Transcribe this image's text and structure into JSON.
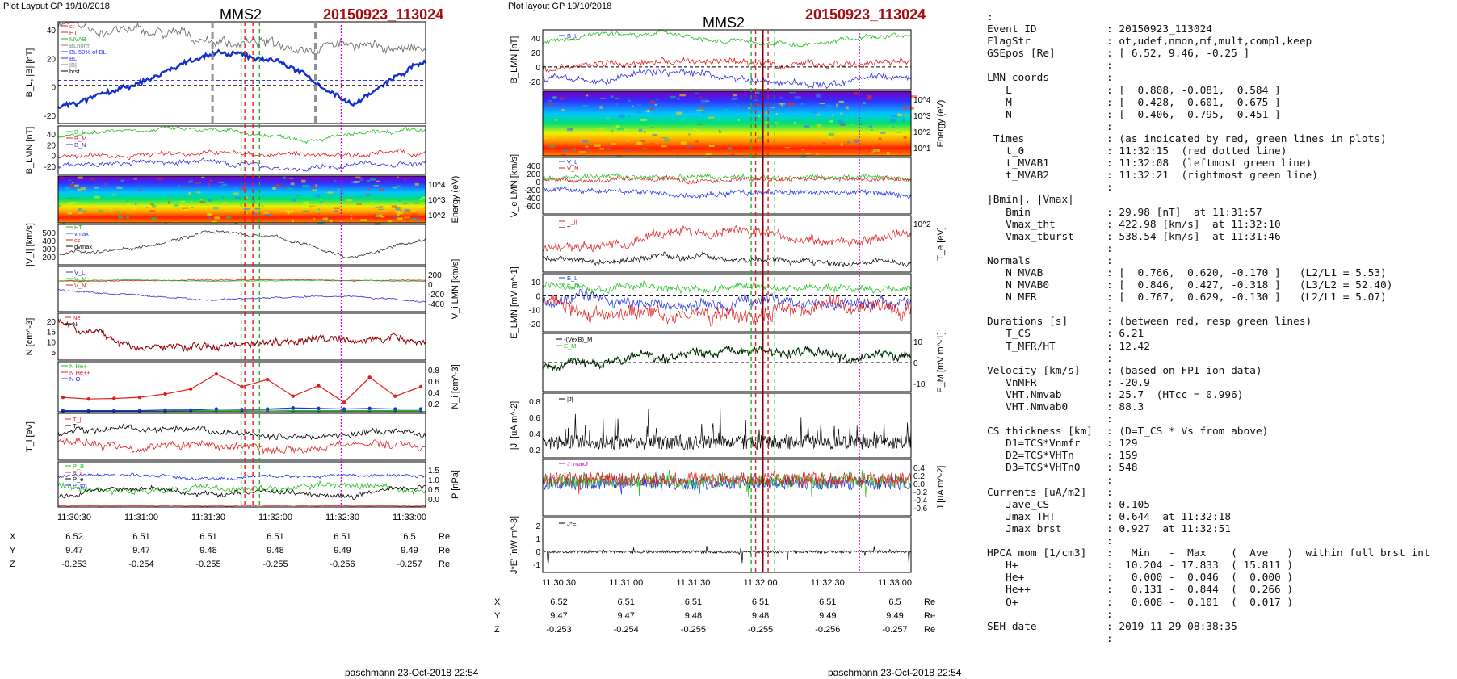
{
  "header_left": "Plot Layout GP 19/10/2018",
  "header_mid": "Plot layout GP 19/10/2018",
  "spacecraft": "MMS2",
  "event_title": "20150923_113024",
  "footer": "paschmann 23-Oct-2018 22:54",
  "colors": {
    "event": "#a01010",
    "green_lines": "#22b022",
    "red_lines": "#e02020",
    "magenta_line": "#cc00cc"
  },
  "left_plot": {
    "x_ticks": [
      "11:30:30",
      "11:31:00",
      "11:31:30",
      "11:32:00",
      "11:32:30",
      "11:33:00"
    ],
    "position_table": {
      "row_labels": [
        "X",
        "Y",
        "Z"
      ],
      "unit": "Re",
      "X": [
        "6.52",
        "6.51",
        "6.51",
        "6.51",
        "6.51",
        "6.5"
      ],
      "Y": [
        "9.47",
        "9.47",
        "9.48",
        "9.48",
        "9.49",
        "9.49"
      ],
      "Z": [
        "-0.253",
        "-0.254",
        "-0.255",
        "-0.255",
        "-0.256",
        "-0.257"
      ]
    },
    "panels": [
      {
        "ylabel": "B_L, |B| [nT]",
        "ticks": [
          "40",
          "20",
          "0",
          "-20"
        ],
        "legend": [
          "ct",
          "HT",
          "MVAB",
          "BLnorm",
          "BL 50% of BL",
          "BL",
          "|B|",
          "brst"
        ]
      },
      {
        "ylabel": "B_LMN [nT]",
        "ticks": [
          "40",
          "20",
          "0",
          "-20"
        ],
        "legend": [
          "B_L",
          "B_M",
          "B_N"
        ]
      },
      {
        "ylabel": "Energy (eV)",
        "ticks": [
          "10^4",
          "10^3",
          "10^2"
        ]
      },
      {
        "ylabel": "|V_i| [km/s]",
        "ticks": [
          "500",
          "400",
          "300",
          "200"
        ],
        "legend": [
          "HT",
          "vmax",
          "cs",
          "dvmax"
        ]
      },
      {
        "ylabel": "V_i LMN [km/s]",
        "ticks": [
          "200",
          "0",
          "-200",
          "-400"
        ],
        "legend": [
          "V_L",
          "V_M",
          "V_N"
        ]
      },
      {
        "ylabel": "N [cm^-3]",
        "ticks": [
          "20",
          "15",
          "10",
          "5"
        ],
        "legend": [
          "Ne",
          "Ni"
        ]
      },
      {
        "ylabel": "N_i [cm^-3]",
        "ticks": [
          "0.8",
          "0.6",
          "0.4",
          "0.2"
        ],
        "legend": [
          "N He+",
          "N He++",
          "N O+"
        ]
      },
      {
        "ylabel": "T_i [eV]",
        "ticks": [],
        "legend": [
          "T_||",
          "T"
        ]
      },
      {
        "ylabel": "P [nPa]",
        "ticks": [
          "1.5",
          "1.0",
          "0.5",
          "0.0"
        ],
        "legend": [
          "P_B",
          "P_i",
          "P_e",
          "P_tot"
        ]
      }
    ]
  },
  "mid_plot": {
    "x_ticks": [
      "11:30:30",
      "11:31:00",
      "11:31:30",
      "11:32:00",
      "11:32:30",
      "11:33:00"
    ],
    "position_table": {
      "row_labels": [
        "X",
        "Y",
        "Z"
      ],
      "unit": "Re",
      "X": [
        "6.52",
        "6.51",
        "6.51",
        "6.51",
        "6.51",
        "6.5"
      ],
      "Y": [
        "9.47",
        "9.47",
        "9.48",
        "9.48",
        "9.49",
        "9.49"
      ],
      "Z": [
        "-0.253",
        "-0.254",
        "-0.255",
        "-0.255",
        "-0.256",
        "-0.257"
      ]
    },
    "panels": [
      {
        "ylabel": "B_LMN [nT]",
        "ticks": [
          "40",
          "20",
          "0",
          "-20"
        ],
        "legend": [
          "B_L"
        ]
      },
      {
        "ylabel": "Energy (eV)",
        "ticks": [
          "10^4",
          "10^3",
          "10^2",
          "10^1"
        ]
      },
      {
        "ylabel": "V_e LMN [km/s]",
        "ticks": [
          "400",
          "200",
          "0",
          "-200",
          "-400",
          "-600"
        ],
        "legend": [
          "V_L",
          "V_N"
        ]
      },
      {
        "ylabel": "T_e [eV]",
        "ticks": [
          "10^2"
        ],
        "legend": [
          "T_||",
          "T"
        ]
      },
      {
        "ylabel": "E_LMN [mV m^-1]",
        "ticks": [
          "10",
          "0",
          "-10",
          "-20"
        ],
        "legend": [
          "E_L",
          "E_N"
        ]
      },
      {
        "ylabel": "E_M [mV m^-1]",
        "ticks": [
          "10",
          "0",
          "-10"
        ],
        "legend": [
          "-(VexB)_M",
          "E_M"
        ]
      },
      {
        "ylabel": "|J| [uA m^-2]",
        "ticks": [
          "0.8",
          "0.6",
          "0.4",
          "0.2"
        ],
        "legend": [
          "|J|"
        ]
      },
      {
        "ylabel": "J [uA m^-2]",
        "ticks": [
          "0.4",
          "0.2",
          "0.0",
          "-0.2",
          "-0.4",
          "-0.6"
        ],
        "legend": [
          "J_maxJ"
        ]
      },
      {
        "ylabel": "J*E' [nW m^-3]",
        "ticks": [
          "2",
          "1",
          "0",
          "-1"
        ],
        "legend": [
          "J*E'"
        ]
      }
    ]
  },
  "summary": [
    {
      "key": ":",
      "value": ""
    },
    {
      "key": "Event ID",
      "value": ": 20150923_113024"
    },
    {
      "key": "FlagStr",
      "value": ": ot,udef,nmon,mf,mult,compl,keep"
    },
    {
      "key": "GSEpos [Re]",
      "value": ": [ 6.52, 9.46, -0.25 ]"
    },
    {
      "key": "",
      "value": ":"
    },
    {
      "key": "LMN coords",
      "value": ":"
    },
    {
      "key": "   L",
      "value": ": [  0.808, -0.081,  0.584 ]"
    },
    {
      "key": "   M",
      "value": ": [ -0.428,  0.601,  0.675 ]"
    },
    {
      "key": "   N",
      "value": ": [  0.406,  0.795, -0.451 ]"
    },
    {
      "key": "",
      "value": ":"
    },
    {
      "key": " Times",
      "value": ": (as indicated by red, green lines in plots)"
    },
    {
      "key": "   t_0",
      "value": ": 11:32:15  (red dotted line)"
    },
    {
      "key": "   t_MVAB1",
      "value": ": 11:32:08  (leftmost green line)"
    },
    {
      "key": "   t_MVAB2",
      "value": ": 11:32:21  (rightmost green line)"
    },
    {
      "key": "",
      "value": ":"
    },
    {
      "key": "|Bmin|, |Vmax|",
      "value": ""
    },
    {
      "key": "   Bmin",
      "value": ": 29.98 [nT]  at 11:31:57"
    },
    {
      "key": "   Vmax_tht",
      "value": ": 422.98 [km/s]  at 11:32:10"
    },
    {
      "key": "   Vmax_tburst",
      "value": ": 538.54 [km/s]  at 11:31:46"
    },
    {
      "key": "",
      "value": ":"
    },
    {
      "key": "Normals",
      "value": ":"
    },
    {
      "key": "   N MVAB",
      "value": ": [  0.766,  0.620, -0.170 ]   (L2/L1 = 5.53)"
    },
    {
      "key": "   N MVAB0",
      "value": ": [  0.846,  0.427, -0.318 ]   (L3/L2 = 52.40)"
    },
    {
      "key": "   N MFR",
      "value": ": [  0.767,  0.629, -0.130 ]   (L2/L1 = 5.07)"
    },
    {
      "key": "",
      "value": ":"
    },
    {
      "key": "Durations [s]",
      "value": ": (between red, resp green lines)"
    },
    {
      "key": "   T_CS",
      "value": ": 6.21"
    },
    {
      "key": "   T_MFR/HT",
      "value": ": 12.42"
    },
    {
      "key": "",
      "value": ":"
    },
    {
      "key": "Velocity [km/s]",
      "value": ": (based on FPI ion data)"
    },
    {
      "key": "   VnMFR",
      "value": ": -20.9"
    },
    {
      "key": "   VHT.Nmvab",
      "value": ": 25.7  (HTcc = 0.996)"
    },
    {
      "key": "   VHT.Nmvab0",
      "value": ": 88.3"
    },
    {
      "key": "",
      "value": ":"
    },
    {
      "key": "CS thickness [km]",
      "value": ": (D=T_CS * Vs from above)"
    },
    {
      "key": "   D1=TCS*Vnmfr",
      "value": ": 129"
    },
    {
      "key": "   D2=TCS*VHTn",
      "value": ": 159"
    },
    {
      "key": "   D3=TCS*VHTn0",
      "value": ": 548"
    },
    {
      "key": "",
      "value": ":"
    },
    {
      "key": "Currents [uA/m2]",
      "value": ":"
    },
    {
      "key": "   Jave_CS",
      "value": ": 0.105"
    },
    {
      "key": "   Jmax_THT",
      "value": ": 0.644  at 11:32:18"
    },
    {
      "key": "   Jmax_brst",
      "value": ": 0.927  at 11:32:51"
    },
    {
      "key": "",
      "value": ":"
    },
    {
      "key": "HPCA mom [1/cm3]",
      "value": ":   Min   -  Max    (  Ave   )  within full brst int"
    },
    {
      "key": "   H+",
      "value": ":  10.204 - 17.833  ( 15.811 )"
    },
    {
      "key": "   He+",
      "value": ":   0.000 -  0.046  (  0.000 )"
    },
    {
      "key": "   He++",
      "value": ":   0.131 -  0.844  (  0.266 )"
    },
    {
      "key": "   O+",
      "value": ":   0.008 -  0.101  (  0.017 )"
    },
    {
      "key": "",
      "value": ":"
    },
    {
      "key": "SEH date",
      "value": ": 2019-11-29 08:38:35"
    },
    {
      "key": "",
      "value": ":"
    }
  ],
  "chart_data": [
    {
      "type": "line",
      "panel": "left B_L/|B|",
      "x": [
        "11:30:30",
        "11:31:00",
        "11:31:30",
        "11:32:00",
        "11:32:30",
        "11:33:00"
      ],
      "series": [
        {
          "name": "B_L",
          "values": [
            -18,
            -2,
            25,
            20,
            -15,
            20
          ]
        },
        {
          "name": "|B|",
          "values": [
            44,
            42,
            36,
            32,
            34,
            26
          ]
        }
      ],
      "ylim": [
        -30,
        50
      ]
    },
    {
      "type": "line",
      "panel": "left |V_i|",
      "x": [
        "11:30:30",
        "11:31:00",
        "11:31:30",
        "11:32:00",
        "11:32:30",
        "11:33:00"
      ],
      "series": [
        {
          "name": "|V_i|",
          "values": [
            250,
            320,
            480,
            420,
            220,
            410
          ]
        }
      ],
      "ylim": [
        150,
        550
      ]
    },
    {
      "type": "line",
      "panel": "left N",
      "x": [
        "11:30:30",
        "11:31:00",
        "11:31:30",
        "11:32:00",
        "11:32:30",
        "11:33:00"
      ],
      "series": [
        {
          "name": "Ne",
          "values": [
            20,
            9,
            9,
            12,
            13,
            11
          ]
        }
      ],
      "ylim": [
        4,
        22
      ]
    },
    {
      "type": "line",
      "panel": "left N_i",
      "x": [
        "11:30:33",
        "11:30:43",
        "11:30:53",
        "11:31:03",
        "11:31:13",
        "11:31:23",
        "11:31:33",
        "11:31:43",
        "11:31:53",
        "11:32:03",
        "11:32:13",
        "11:32:23",
        "11:32:33",
        "11:32:43",
        "11:32:53"
      ],
      "series": [
        {
          "name": "N He+",
          "values": [
            0.01,
            0.01,
            0.01,
            0.01,
            0.01,
            0.02,
            0.02,
            0.02,
            0.03,
            0.02,
            0.02,
            0.02,
            0.02,
            0.02,
            0.02
          ]
        },
        {
          "name": "N He++",
          "values": [
            0.26,
            0.23,
            0.24,
            0.26,
            0.32,
            0.41,
            0.68,
            0.45,
            0.58,
            0.28,
            0.47,
            0.17,
            0.62,
            0.28,
            0.45
          ]
        },
        {
          "name": "N O+",
          "values": [
            0.02,
            0.02,
            0.02,
            0.02,
            0.03,
            0.03,
            0.05,
            0.04,
            0.05,
            0.07,
            0.06,
            0.05,
            0.06,
            0.05,
            0.05
          ]
        }
      ],
      "ylim": [
        0,
        0.9
      ]
    },
    {
      "type": "line",
      "panel": "mid |J|",
      "x": [
        "11:30:30",
        "11:31:00",
        "11:31:30",
        "11:32:00",
        "11:32:30",
        "11:33:00"
      ],
      "series": [
        {
          "name": "|J|",
          "values": [
            0.15,
            0.2,
            0.25,
            0.3,
            0.35,
            0.25
          ]
        }
      ],
      "ylim": [
        0,
        0.9
      ]
    }
  ]
}
